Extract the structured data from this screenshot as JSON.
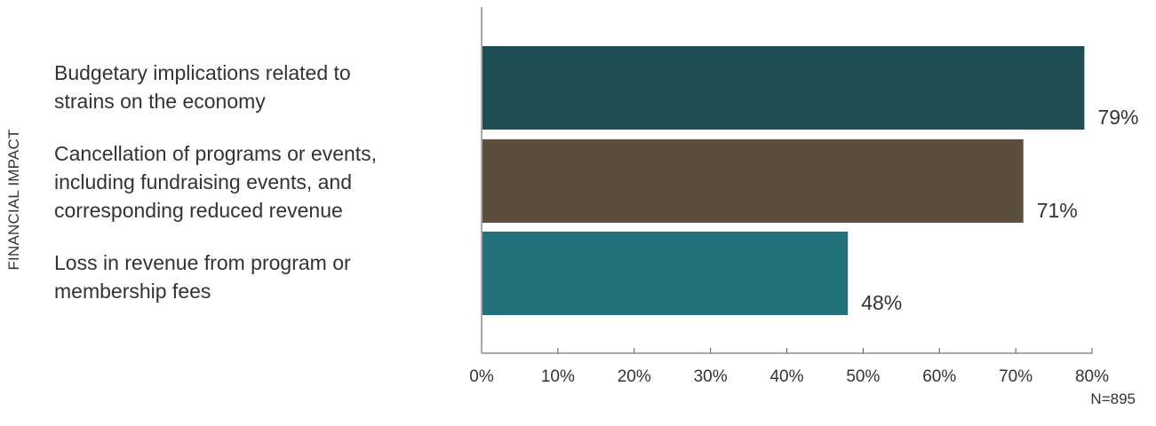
{
  "chart_data": {
    "type": "bar",
    "orientation": "horizontal",
    "group_label": "FINANCIAL IMPACT",
    "categories": [
      "Budgetary implications related to strains on the economy",
      "Cancellation of programs or events, including fundraising events, and corresponding reduced revenue",
      "Loss in revenue from program or membership fees"
    ],
    "values": [
      79,
      71,
      48
    ],
    "value_labels": [
      "79%",
      "71%",
      "48%"
    ],
    "bar_colors": [
      "#1f4e52",
      "#5a4f3e",
      "#22717a"
    ],
    "xlim": [
      0,
      80
    ],
    "xticks": [
      0,
      10,
      20,
      30,
      40,
      50,
      60,
      70,
      80
    ],
    "xtick_labels": [
      "0%",
      "10%",
      "20%",
      "30%",
      "40%",
      "50%",
      "60%",
      "70%",
      "80%"
    ],
    "grid": false,
    "note": "N=895"
  },
  "category_lines": [
    [
      "Budgetary implications related to",
      "strains on the economy"
    ],
    [
      "Cancellation of programs or events,",
      "including fundraising events, and",
      "corresponding reduced revenue"
    ],
    [
      "Loss in revenue from program or",
      "membership fees"
    ]
  ]
}
